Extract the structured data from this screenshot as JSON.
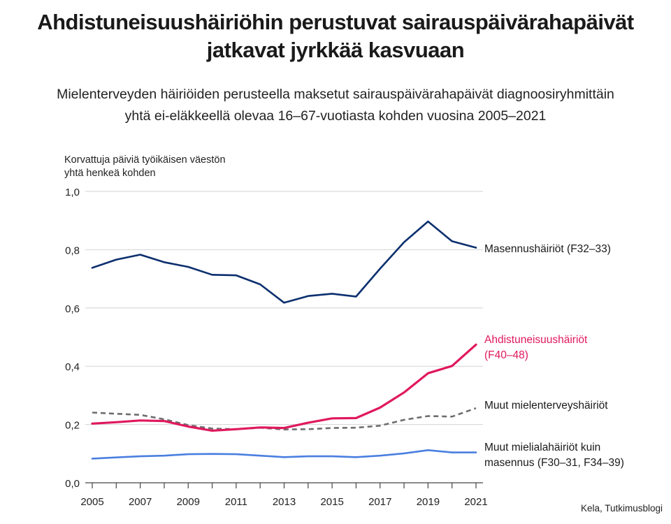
{
  "header": {
    "title_line1": "Ahdistuneisuushäiriöhin perustuvat sairauspäivärahapäivät",
    "title_line2": "jatkavat jyrkkää kasvuaan",
    "subtitle_line1": "Mielenterveyden häiriöiden perusteella maksetut sairauspäivärahapäivät diagnoosiryhmittäin",
    "subtitle_line2": "yhtä ei-eläkkeellä olevaa 16–67-vuotiasta kohden vuosina 2005–2021"
  },
  "source": "Kela, Tutkimusblogi",
  "chart_data": {
    "type": "line",
    "ylabel_lines": [
      "Korvattuja päiviä työikäisen väestön",
      "yhtä henkeä kohden"
    ],
    "ylim": [
      0,
      1.0
    ],
    "y_ticks": [
      0.0,
      0.2,
      0.4,
      0.6,
      0.8,
      1.0
    ],
    "y_tick_labels": [
      "0,0",
      "0,2",
      "0,4",
      "0,6",
      "0,8",
      "1,0"
    ],
    "x": [
      2005,
      2006,
      2007,
      2008,
      2009,
      2010,
      2011,
      2012,
      2013,
      2014,
      2015,
      2016,
      2017,
      2018,
      2019,
      2020,
      2021
    ],
    "x_tick_labels": [
      "2005",
      "2007",
      "2009",
      "2011",
      "2013",
      "2015",
      "2017",
      "2019",
      "2021"
    ],
    "x_tick_values": [
      2005,
      2007,
      2009,
      2011,
      2013,
      2015,
      2017,
      2019,
      2021
    ],
    "grid": "horizontal",
    "series": [
      {
        "label_lines": [
          "Masennushäiriöt (F32–33)"
        ],
        "color": "#0b2f6e",
        "dashed": false,
        "values": [
          0.738,
          0.766,
          0.783,
          0.757,
          0.741,
          0.714,
          0.712,
          0.681,
          0.618,
          0.641,
          0.649,
          0.639,
          0.735,
          0.826,
          0.897,
          0.829,
          0.807
        ]
      },
      {
        "label_lines": [
          "Ahdistuneisuushäiriöt",
          "(F40–48)"
        ],
        "color": "#e0185e",
        "dashed": false,
        "values": [
          0.203,
          0.208,
          0.214,
          0.212,
          0.193,
          0.179,
          0.184,
          0.19,
          0.188,
          0.206,
          0.221,
          0.222,
          0.258,
          0.31,
          0.376,
          0.401,
          0.474
        ]
      },
      {
        "label_lines": [
          "Muut mielenterveyshäiriöt"
        ],
        "color": "#6e6e6e",
        "dashed": true,
        "values": [
          0.241,
          0.237,
          0.233,
          0.218,
          0.198,
          0.186,
          0.184,
          0.189,
          0.183,
          0.184,
          0.188,
          0.189,
          0.196,
          0.216,
          0.229,
          0.227,
          0.256
        ]
      },
      {
        "label_lines": [
          "Muut mielialahäiriöt kuin",
          "masennus (F30–31, F34–39)"
        ],
        "color": "#4a7fe0",
        "dashed": false,
        "values": [
          0.083,
          0.087,
          0.091,
          0.093,
          0.098,
          0.099,
          0.098,
          0.093,
          0.088,
          0.091,
          0.091,
          0.088,
          0.093,
          0.101,
          0.112,
          0.104,
          0.104
        ]
      }
    ]
  }
}
